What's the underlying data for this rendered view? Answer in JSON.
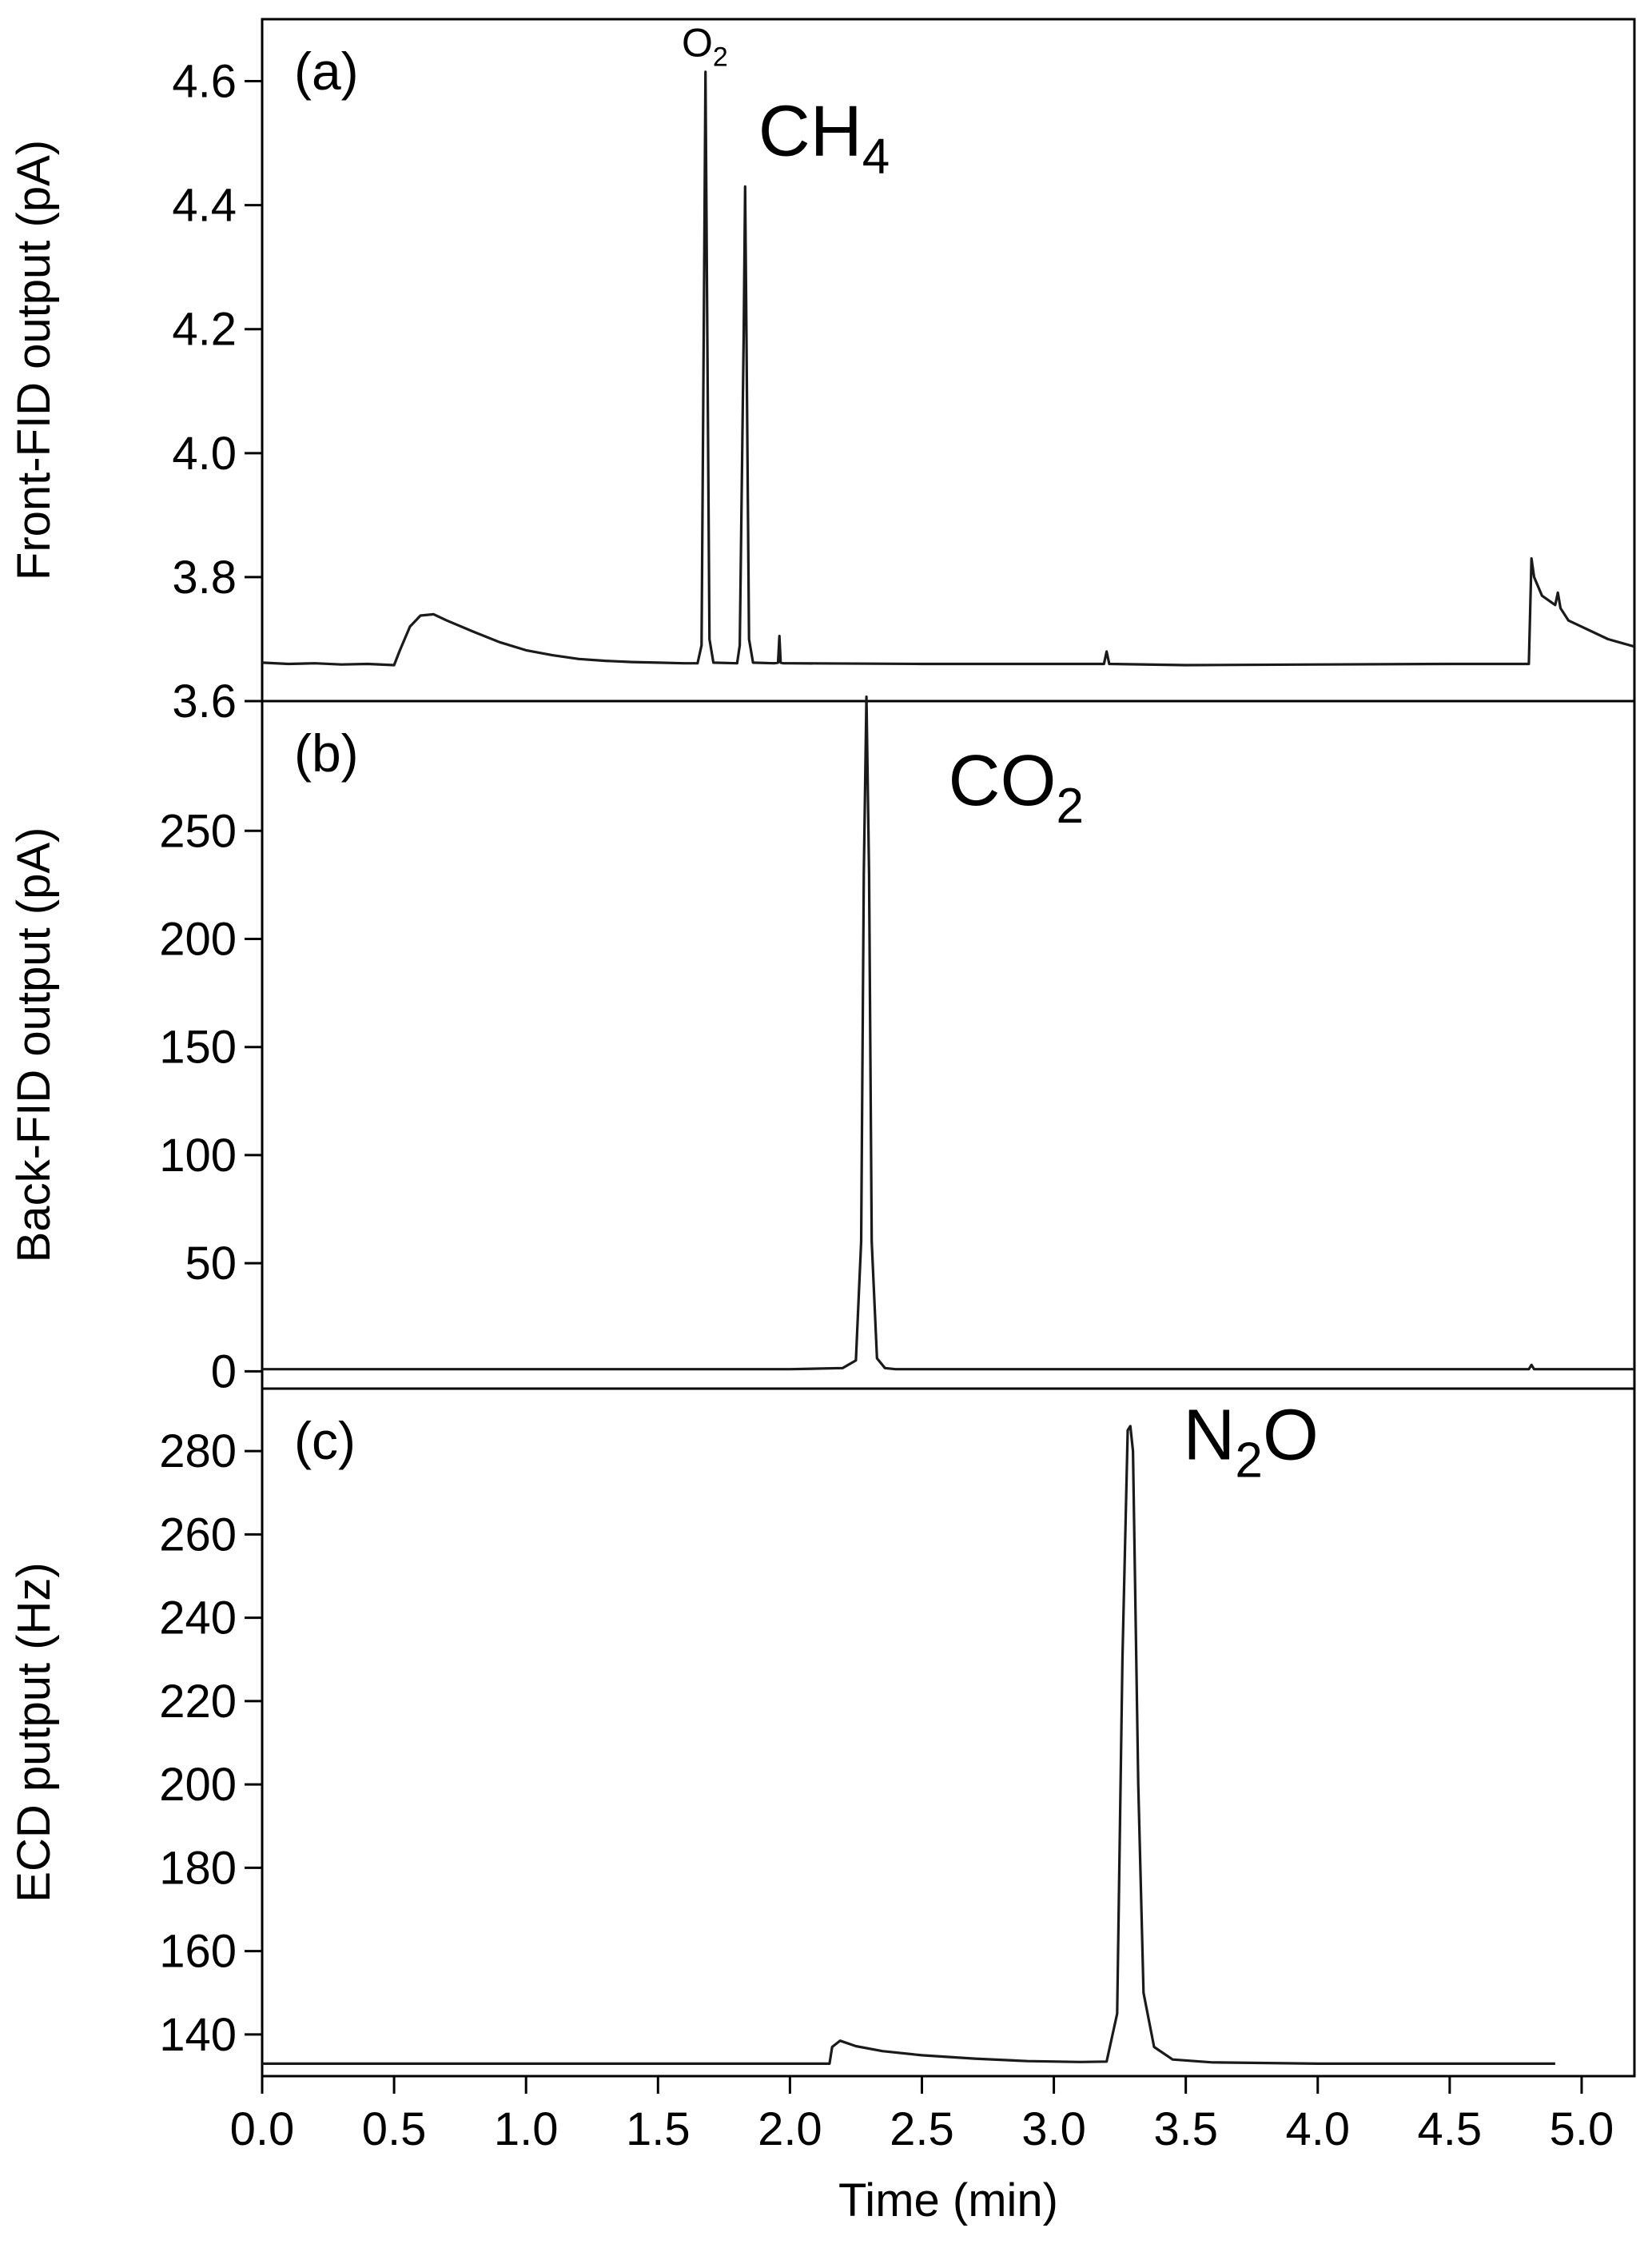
{
  "chart_data": [
    {
      "type": "line",
      "panel_label": "(a)",
      "ylabel": "Front-FID output (pA)",
      "ylim": [
        3.6,
        4.7
      ],
      "yticks": [
        3.6,
        3.8,
        4.0,
        4.2,
        4.4,
        4.6
      ],
      "ytick_labels": [
        "3.6",
        "3.8",
        "4.0",
        "4.2",
        "4.4",
        "4.6"
      ],
      "xlim": [
        0,
        5.2
      ],
      "grid": false,
      "annotations": [
        {
          "name": "o2",
          "text": "O",
          "sub": "2",
          "x": 1.59,
          "y": 4.64
        },
        {
          "name": "ch4",
          "text": "CH",
          "sub": "4",
          "x": 1.88,
          "y": 4.48
        }
      ],
      "series": [
        {
          "x": [
            0.0,
            0.1,
            0.2,
            0.3,
            0.4,
            0.5,
            0.52,
            0.56,
            0.6,
            0.65,
            0.7,
            0.8,
            0.9,
            1.0,
            1.1,
            1.2,
            1.3,
            1.4,
            1.5,
            1.6,
            1.65,
            1.665,
            1.675,
            1.68,
            1.685,
            1.695,
            1.71,
            1.8,
            1.81,
            1.825,
            1.83,
            1.835,
            1.845,
            1.86,
            1.94,
            1.955,
            1.96,
            1.965,
            1.975,
            2.0,
            2.5,
            3.0,
            3.19,
            3.2,
            3.21,
            3.5,
            4.0,
            4.5,
            4.8,
            4.81,
            4.82,
            4.85,
            4.9,
            4.91,
            4.92,
            4.95,
            5.0,
            5.1,
            5.2
          ],
          "y": [
            3.662,
            3.66,
            3.661,
            3.659,
            3.66,
            3.658,
            3.68,
            3.72,
            3.738,
            3.74,
            3.73,
            3.712,
            3.695,
            3.682,
            3.674,
            3.668,
            3.665,
            3.663,
            3.662,
            3.661,
            3.661,
            3.69,
            4.3,
            4.615,
            4.3,
            3.7,
            3.662,
            3.661,
            3.69,
            4.2,
            4.43,
            4.2,
            3.7,
            3.662,
            3.661,
            3.662,
            3.705,
            3.662,
            3.661,
            3.661,
            3.66,
            3.66,
            3.66,
            3.68,
            3.66,
            3.658,
            3.659,
            3.66,
            3.66,
            3.83,
            3.8,
            3.77,
            3.755,
            3.775,
            3.75,
            3.73,
            3.72,
            3.7,
            3.688
          ]
        }
      ]
    },
    {
      "type": "line",
      "panel_label": "(b)",
      "ylabel": "Back-FID output (pA)",
      "ylim": [
        -8,
        310
      ],
      "yticks": [
        0,
        50,
        100,
        150,
        200,
        250
      ],
      "ytick_labels": [
        "0",
        "50",
        "100",
        "150",
        "200",
        "250"
      ],
      "xlim": [
        0,
        5.2
      ],
      "grid": false,
      "annotations": [
        {
          "name": "co2",
          "text": "CO",
          "sub": "2",
          "x": 2.6,
          "y": 262
        }
      ],
      "series": [
        {
          "x": [
            0.0,
            1.0,
            2.0,
            2.2,
            2.25,
            2.27,
            2.28,
            2.29,
            2.3,
            2.31,
            2.33,
            2.36,
            2.4,
            3.0,
            4.0,
            4.8,
            4.81,
            4.82,
            5.2
          ],
          "y": [
            1,
            1,
            1,
            1.5,
            5,
            60,
            230,
            312,
            230,
            60,
            6,
            1.5,
            1,
            1,
            1,
            1,
            3,
            1,
            1
          ]
        }
      ]
    },
    {
      "type": "line",
      "panel_label": "(c)",
      "ylabel": "ECD putput (Hz)",
      "ylim": [
        130,
        295
      ],
      "yticks": [
        140,
        160,
        180,
        200,
        220,
        240,
        260,
        280
      ],
      "ytick_labels": [
        "140",
        "160",
        "180",
        "200",
        "220",
        "240",
        "260",
        "280"
      ],
      "xlim": [
        0,
        5.2
      ],
      "xlabel": "Time (min)",
      "xticks": [
        0,
        0.5,
        1,
        1.5,
        2,
        2.5,
        3,
        3.5,
        4,
        4.5,
        5
      ],
      "xtick_labels": [
        "0.0",
        "0.5",
        "1.0",
        "1.5",
        "2.0",
        "2.5",
        "3.0",
        "3.5",
        "4.0",
        "4.5",
        "5.0"
      ],
      "grid": false,
      "annotations": [
        {
          "name": "n2o",
          "text": "N",
          "sub": "2",
          "after": "O",
          "x": 3.49,
          "y": 278
        }
      ],
      "series": [
        {
          "x": [
            0.0,
            1.0,
            2.0,
            2.15,
            2.16,
            2.19,
            2.25,
            2.35,
            2.5,
            2.7,
            2.9,
            3.1,
            3.2,
            3.24,
            3.26,
            3.28,
            3.29,
            3.3,
            3.32,
            3.34,
            3.38,
            3.45,
            3.6,
            4.0,
            4.5,
            4.9
          ],
          "y": [
            133,
            133,
            133,
            133,
            137,
            138.5,
            137.2,
            136,
            135,
            134.2,
            133.6,
            133.4,
            133.5,
            145,
            230,
            285,
            286,
            280,
            200,
            150,
            137,
            134,
            133.3,
            133,
            133,
            133
          ]
        }
      ]
    }
  ]
}
